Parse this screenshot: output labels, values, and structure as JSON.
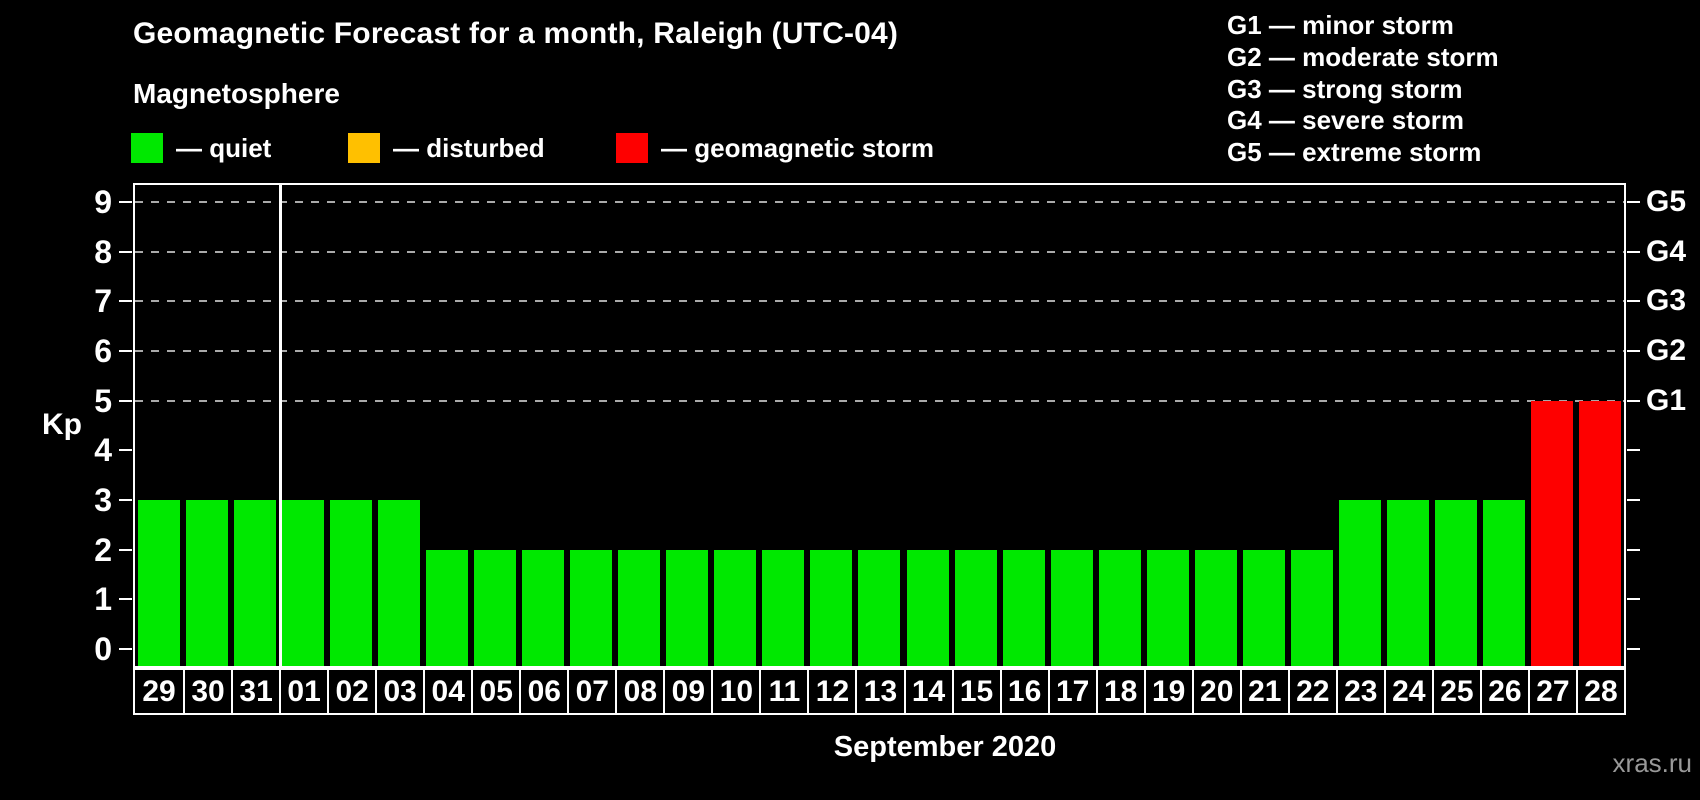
{
  "header": {
    "title": "Geomagnetic Forecast for a month, Raleigh (UTC-04)",
    "subtitle": "Magnetosphere"
  },
  "status_legend": [
    {
      "status": "quiet",
      "label": "— quiet",
      "color": "#00e800",
      "x_offset": 0
    },
    {
      "status": "disturbed",
      "label": "— disturbed",
      "color": "#ffc000",
      "x_offset": 217
    },
    {
      "status": "storm",
      "label": "— geomagnetic storm",
      "color": "#fe0000",
      "x_offset": 485
    }
  ],
  "g_scale_legend": [
    "G1 — minor storm",
    "G2 — moderate storm",
    "G3 — strong storm",
    "G4 — severe storm",
    "G5 — extreme storm"
  ],
  "axes": {
    "y_title": "Kp",
    "x_title": "September 2020",
    "y_ticks": [
      0,
      1,
      2,
      3,
      4,
      5,
      6,
      7,
      8,
      9
    ],
    "right_labels": [
      {
        "kp": 5,
        "label": "G1"
      },
      {
        "kp": 6,
        "label": "G2"
      },
      {
        "kp": 7,
        "label": "G3"
      },
      {
        "kp": 8,
        "label": "G4"
      },
      {
        "kp": 9,
        "label": "G5"
      }
    ]
  },
  "footer": {
    "watermark": "xras.ru"
  },
  "chart_data": {
    "type": "bar",
    "title": "Geomagnetic Forecast for a month, Raleigh (UTC-04)",
    "xlabel": "September 2020",
    "ylabel": "Kp",
    "ylim": [
      0,
      9
    ],
    "gridlines_at_kp": [
      5,
      6,
      7,
      8,
      9
    ],
    "legend_position": "top",
    "x": [
      "29",
      "30",
      "31",
      "01",
      "02",
      "03",
      "04",
      "05",
      "06",
      "07",
      "08",
      "09",
      "10",
      "11",
      "12",
      "13",
      "14",
      "15",
      "16",
      "17",
      "18",
      "19",
      "20",
      "21",
      "22",
      "23",
      "24",
      "25",
      "26",
      "27",
      "28"
    ],
    "values": [
      3,
      3,
      3,
      3,
      3,
      3,
      2,
      2,
      2,
      2,
      2,
      2,
      2,
      2,
      2,
      2,
      2,
      2,
      2,
      2,
      2,
      2,
      2,
      2,
      2,
      3,
      3,
      3,
      3,
      5,
      5
    ],
    "statuses": [
      "quiet",
      "quiet",
      "quiet",
      "quiet",
      "quiet",
      "quiet",
      "quiet",
      "quiet",
      "quiet",
      "quiet",
      "quiet",
      "quiet",
      "quiet",
      "quiet",
      "quiet",
      "quiet",
      "quiet",
      "quiet",
      "quiet",
      "quiet",
      "quiet",
      "quiet",
      "quiet",
      "quiet",
      "quiet",
      "quiet",
      "quiet",
      "quiet",
      "quiet",
      "storm",
      "storm"
    ],
    "status_colors": {
      "quiet": "#00e800",
      "disturbed": "#ffc000",
      "storm": "#fe0000"
    },
    "month_boundary_after_index": 2
  }
}
